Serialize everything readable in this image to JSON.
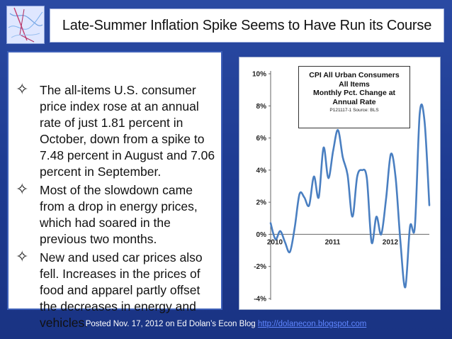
{
  "slide": {
    "title": "Late-Summer Inflation Spike Seems to Have Run its Course",
    "bullets": [
      {
        "text": "The all-items U.S. consumer price index rose at an annual rate of just 1.81 percent in October, down from a spike to 7.48 percent in August and 7.06 percent in September."
      },
      {
        "text": "Most of the slowdown came from a drop in energy prices, which had soared in the previous two months."
      },
      {
        "text": "New and used car prices also fell. Increases in the prices of food and apparel partly offset the decreases in energy and vehicles."
      }
    ],
    "bullet_icon": "four-pointed-star-icon",
    "footer": {
      "prefix": "Posted Nov. 17, 2012 on Ed Dolan’s Econ Blog ",
      "link": "http://dolanecon.blogspot.com"
    }
  },
  "colors": {
    "background": "#1f3a8c",
    "line": "#4a7fc1",
    "link": "#5f86ff"
  },
  "chart_data": {
    "type": "line",
    "legend_lines": [
      "CPI All Urban Consumers",
      "All Items",
      "Monthly Pct. Change at",
      "Annual Rate"
    ],
    "legend_source": "P121117-1 Source: BLS",
    "legend_placement": "top-right",
    "ylim": [
      -4,
      10
    ],
    "yticks": [
      "10%",
      "8%",
      "6%",
      "4%",
      "2%",
      "0%",
      "-2%",
      "-4%"
    ],
    "ytick_values": [
      10,
      8,
      6,
      4,
      2,
      0,
      -2,
      -4
    ],
    "xticks": [
      "2010",
      "2011",
      "2012"
    ],
    "xtick_positions": [
      0,
      12,
      24
    ],
    "grid": false,
    "series": [
      {
        "x": [
          0,
          1,
          2,
          3,
          4,
          5,
          6,
          7,
          8,
          9,
          10,
          11,
          12,
          13,
          14,
          15,
          16,
          17,
          18,
          19,
          20,
          21,
          22,
          23,
          24,
          25,
          26,
          27,
          28,
          29,
          30,
          31,
          32,
          33
        ],
        "values": [
          0.7,
          -0.3,
          0.2,
          -0.5,
          -1.1,
          0.4,
          2.5,
          2.3,
          1.8,
          3.6,
          2.3,
          5.4,
          3.5,
          5.2,
          6.5,
          4.8,
          3.7,
          1.1,
          3.6,
          4.0,
          3.5,
          -0.5,
          1.1,
          0.0,
          2.2,
          5.0,
          3.5,
          -0.5,
          -3.3,
          0.5,
          0.5,
          7.5,
          7.06,
          1.81
        ]
      }
    ]
  }
}
